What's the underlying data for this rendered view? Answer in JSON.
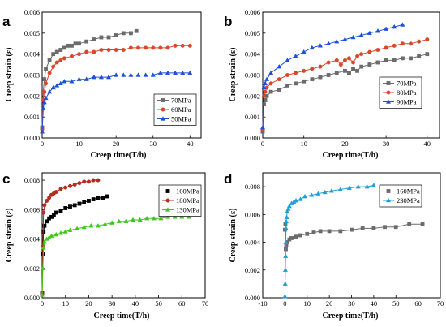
{
  "chart_data": [
    {
      "id": "a",
      "panel_letter": "a",
      "type": "scatter",
      "xlabel": "Creep time(T/h)",
      "ylabel": "Creep strain (ε)",
      "xlim": [
        0,
        43
      ],
      "ylim": [
        0,
        0.006
      ],
      "xticks": [
        0,
        10,
        20,
        30,
        40
      ],
      "xtick_labels": [
        "0",
        "10",
        "20",
        "30",
        "40"
      ],
      "yticks": [
        0,
        0.001,
        0.002,
        0.003,
        0.004,
        0.005,
        0.006
      ],
      "ytick_labels": [
        "0.000",
        "0.001",
        "0.002",
        "0.003",
        "0.004",
        "0.005",
        "0.006"
      ],
      "legend_position": "bottom-right",
      "series": [
        {
          "name": "70MPa",
          "color": "#6b6b6b",
          "marker": "square",
          "x": [
            0,
            0.3,
            0.6,
            1,
            2,
            3,
            4,
            5,
            6,
            7,
            8,
            9,
            10,
            12,
            14,
            16,
            18,
            20,
            22,
            24,
            25.5
          ],
          "y": [
            0.0005,
            0.0022,
            0.0028,
            0.0033,
            0.0037,
            0.004,
            0.0041,
            0.0042,
            0.0043,
            0.0044,
            0.0044,
            0.0045,
            0.0045,
            0.0046,
            0.0047,
            0.0048,
            0.0048,
            0.0049,
            0.005,
            0.005,
            0.0051
          ]
        },
        {
          "name": "60MPa",
          "color": "#d9472b",
          "marker": "circle",
          "x": [
            0,
            0.3,
            0.6,
            1,
            2,
            3,
            4,
            5,
            6,
            8,
            10,
            12,
            14,
            16,
            18,
            20,
            22,
            24,
            26,
            28,
            30,
            32,
            34,
            36,
            38,
            40
          ],
          "y": [
            0.0004,
            0.0018,
            0.0022,
            0.0026,
            0.0031,
            0.0034,
            0.0036,
            0.0037,
            0.0038,
            0.0039,
            0.004,
            0.0041,
            0.0041,
            0.0042,
            0.0042,
            0.0042,
            0.0042,
            0.0043,
            0.0043,
            0.0043,
            0.0043,
            0.0043,
            0.0043,
            0.0044,
            0.0044,
            0.0044
          ]
        },
        {
          "name": "50MPa",
          "color": "#1f4fd6",
          "marker": "triangle",
          "x": [
            0,
            0.3,
            0.6,
            1,
            2,
            3,
            4,
            5,
            6,
            8,
            10,
            12,
            14,
            16,
            18,
            20,
            22,
            24,
            26,
            28,
            30,
            32,
            34,
            36,
            38,
            40
          ],
          "y": [
            0.0003,
            0.0014,
            0.0017,
            0.0019,
            0.0022,
            0.0024,
            0.0025,
            0.0026,
            0.0027,
            0.0027,
            0.0028,
            0.0028,
            0.0029,
            0.0029,
            0.0029,
            0.003,
            0.003,
            0.003,
            0.003,
            0.003,
            0.003,
            0.0031,
            0.0031,
            0.0031,
            0.0031,
            0.0031
          ]
        }
      ]
    },
    {
      "id": "b",
      "panel_letter": "b",
      "type": "scatter",
      "xlabel": "Creep time(T/h)",
      "ylabel": "Creep strain (ε)",
      "xlim": [
        0,
        43
      ],
      "ylim": [
        0,
        0.006
      ],
      "xticks": [
        0,
        10,
        20,
        30,
        40
      ],
      "xtick_labels": [
        "0",
        "10",
        "20",
        "30",
        "40"
      ],
      "yticks": [
        0,
        0.001,
        0.002,
        0.003,
        0.004,
        0.005,
        0.006
      ],
      "ytick_labels": [
        "0.000",
        "0.001",
        "0.002",
        "0.003",
        "0.004",
        "0.005",
        "0.006"
      ],
      "legend_position": "bottom-right",
      "series": [
        {
          "name": "70MPa",
          "color": "#6b6b6b",
          "marker": "square",
          "x": [
            0,
            0.3,
            0.6,
            1,
            2,
            4,
            6,
            8,
            10,
            12,
            14,
            16,
            18,
            20,
            21,
            22,
            23,
            24,
            26,
            28,
            30,
            32,
            34,
            36,
            38,
            40
          ],
          "y": [
            0.0003,
            0.0016,
            0.0018,
            0.002,
            0.0022,
            0.0023,
            0.0025,
            0.0026,
            0.0027,
            0.0028,
            0.0029,
            0.003,
            0.0031,
            0.0032,
            0.0031,
            0.0033,
            0.0032,
            0.0034,
            0.0035,
            0.0036,
            0.0037,
            0.0037,
            0.0038,
            0.0038,
            0.0039,
            0.004
          ]
        },
        {
          "name": "80MPa",
          "color": "#d9472b",
          "marker": "circle",
          "x": [
            0,
            0.3,
            0.6,
            1,
            2,
            4,
            6,
            8,
            10,
            12,
            14,
            16,
            18,
            19,
            20,
            21,
            22,
            23,
            24,
            26,
            28,
            30,
            32,
            34,
            36,
            38,
            40
          ],
          "y": [
            0.0004,
            0.002,
            0.0022,
            0.0024,
            0.0026,
            0.0028,
            0.003,
            0.0031,
            0.0032,
            0.0033,
            0.0034,
            0.0036,
            0.0037,
            0.0035,
            0.0037,
            0.0038,
            0.0036,
            0.0039,
            0.004,
            0.0041,
            0.0042,
            0.0043,
            0.0044,
            0.0045,
            0.0045,
            0.0046,
            0.0047
          ]
        },
        {
          "name": "90MPa",
          "color": "#1f4fd6",
          "marker": "triangle",
          "x": [
            0,
            0.3,
            0.6,
            1,
            2,
            4,
            6,
            8,
            10,
            12,
            14,
            16,
            18,
            20,
            22,
            24,
            26,
            28,
            30,
            32,
            34
          ],
          "y": [
            0.0005,
            0.0024,
            0.0026,
            0.0028,
            0.0031,
            0.0034,
            0.0037,
            0.0039,
            0.0041,
            0.0043,
            0.0044,
            0.0045,
            0.0046,
            0.0047,
            0.0048,
            0.0049,
            0.005,
            0.0051,
            0.0052,
            0.0053,
            0.0054
          ]
        }
      ]
    },
    {
      "id": "c",
      "panel_letter": "c",
      "type": "scatter",
      "xlabel": "Creep time(T/h)",
      "ylabel": "Creep strain (ε)",
      "xlim": [
        0,
        70
      ],
      "ylim": [
        0,
        0.0085
      ],
      "xticks": [
        0,
        10,
        20,
        30,
        40,
        50,
        60,
        70
      ],
      "xtick_labels": [
        "0",
        "10",
        "20",
        "30",
        "40",
        "50",
        "60",
        "70"
      ],
      "yticks": [
        0,
        0.002,
        0.004,
        0.006,
        0.008
      ],
      "ytick_labels": [
        "0.000",
        "0.002",
        "0.004",
        "0.006",
        "0.008"
      ],
      "legend_position": "top-right",
      "series": [
        {
          "name": "160MPa",
          "color": "#000000",
          "marker": "square",
          "x": [
            0,
            0.3,
            0.6,
            1,
            2,
            3,
            4,
            5,
            6,
            8,
            10,
            12,
            14,
            16,
            18,
            20,
            22,
            24,
            26,
            28
          ],
          "y": [
            0.0003,
            0.003,
            0.0045,
            0.0049,
            0.0052,
            0.0054,
            0.0055,
            0.0056,
            0.0058,
            0.0059,
            0.0061,
            0.0062,
            0.0063,
            0.0064,
            0.0065,
            0.0066,
            0.0067,
            0.0068,
            0.0068,
            0.0069
          ]
        },
        {
          "name": "180MPa",
          "color": "#b22c1f",
          "marker": "circle",
          "x": [
            0,
            0.3,
            0.6,
            1,
            2,
            3,
            4,
            5,
            6,
            8,
            10,
            12,
            14,
            16,
            18,
            20,
            22,
            24
          ],
          "y": [
            0.0003,
            0.0035,
            0.0058,
            0.0063,
            0.0066,
            0.0068,
            0.007,
            0.0071,
            0.0072,
            0.0074,
            0.0075,
            0.0076,
            0.0077,
            0.0078,
            0.0079,
            0.0079,
            0.008,
            0.008
          ]
        },
        {
          "name": "130MPa",
          "color": "#3fc71c",
          "marker": "triangle",
          "x": [
            0,
            0.3,
            0.6,
            1,
            2,
            3,
            4,
            6,
            8,
            10,
            12,
            15,
            18,
            21,
            24,
            27,
            30,
            33,
            36,
            39,
            42,
            45,
            48,
            51,
            54,
            57,
            60,
            63
          ],
          "y": [
            0.0002,
            0.002,
            0.0034,
            0.0038,
            0.004,
            0.0041,
            0.0042,
            0.0043,
            0.0044,
            0.0045,
            0.0046,
            0.0047,
            0.0048,
            0.0049,
            0.0049,
            0.005,
            0.0051,
            0.0052,
            0.0052,
            0.0053,
            0.0053,
            0.0054,
            0.0054,
            0.0054,
            0.0055,
            0.0055,
            0.0055,
            0.0055
          ]
        }
      ]
    },
    {
      "id": "d",
      "panel_letter": "d",
      "type": "scatter",
      "xlabel": "Creep time(T/h)",
      "ylabel": "Creep strain (ε)",
      "xlim": [
        -10,
        70
      ],
      "ylim": [
        0,
        0.009
      ],
      "xticks": [
        -10,
        0,
        10,
        20,
        30,
        40,
        50,
        60,
        70
      ],
      "xtick_labels": [
        "-10",
        "0",
        "10",
        "20",
        "30",
        "40",
        "50",
        "60",
        "70"
      ],
      "yticks": [
        0,
        0.002,
        0.004,
        0.006,
        0.008
      ],
      "ytick_labels": [
        "0.000",
        "0.002",
        "0.004",
        "0.006",
        "0.008"
      ],
      "legend_position": "top-right",
      "series": [
        {
          "name": "160MPa",
          "color": "#6b6b6b",
          "marker": "square",
          "x": [
            0,
            0.2,
            0.4,
            0.6,
            1,
            2,
            3,
            5,
            7,
            10,
            13,
            16,
            20,
            25,
            30,
            35,
            40,
            45,
            50,
            56,
            62
          ],
          "y": [
            0.0049,
            0.0053,
            0.0035,
            0.0038,
            0.004,
            0.0042,
            0.0043,
            0.0044,
            0.0045,
            0.0046,
            0.0047,
            0.0048,
            0.0048,
            0.0048,
            0.0049,
            0.005,
            0.005,
            0.0051,
            0.0051,
            0.0053,
            0.0053
          ]
        },
        {
          "name": "230MPa",
          "color": "#1e9fd8",
          "marker": "triangle",
          "x": [
            0,
            0.1,
            0.2,
            0.3,
            0.4,
            0.5,
            0.6,
            0.8,
            1,
            1.5,
            2,
            3,
            4,
            5,
            7,
            9,
            12,
            15,
            18,
            21,
            25,
            29,
            33,
            37,
            40
          ],
          "y": [
            0.0001,
            0.001,
            0.002,
            0.003,
            0.004,
            0.005,
            0.0055,
            0.0058,
            0.0062,
            0.0064,
            0.0066,
            0.0068,
            0.0069,
            0.007,
            0.0071,
            0.0073,
            0.0074,
            0.0075,
            0.0076,
            0.0077,
            0.0078,
            0.0079,
            0.008,
            0.008,
            0.0081
          ]
        }
      ]
    }
  ]
}
